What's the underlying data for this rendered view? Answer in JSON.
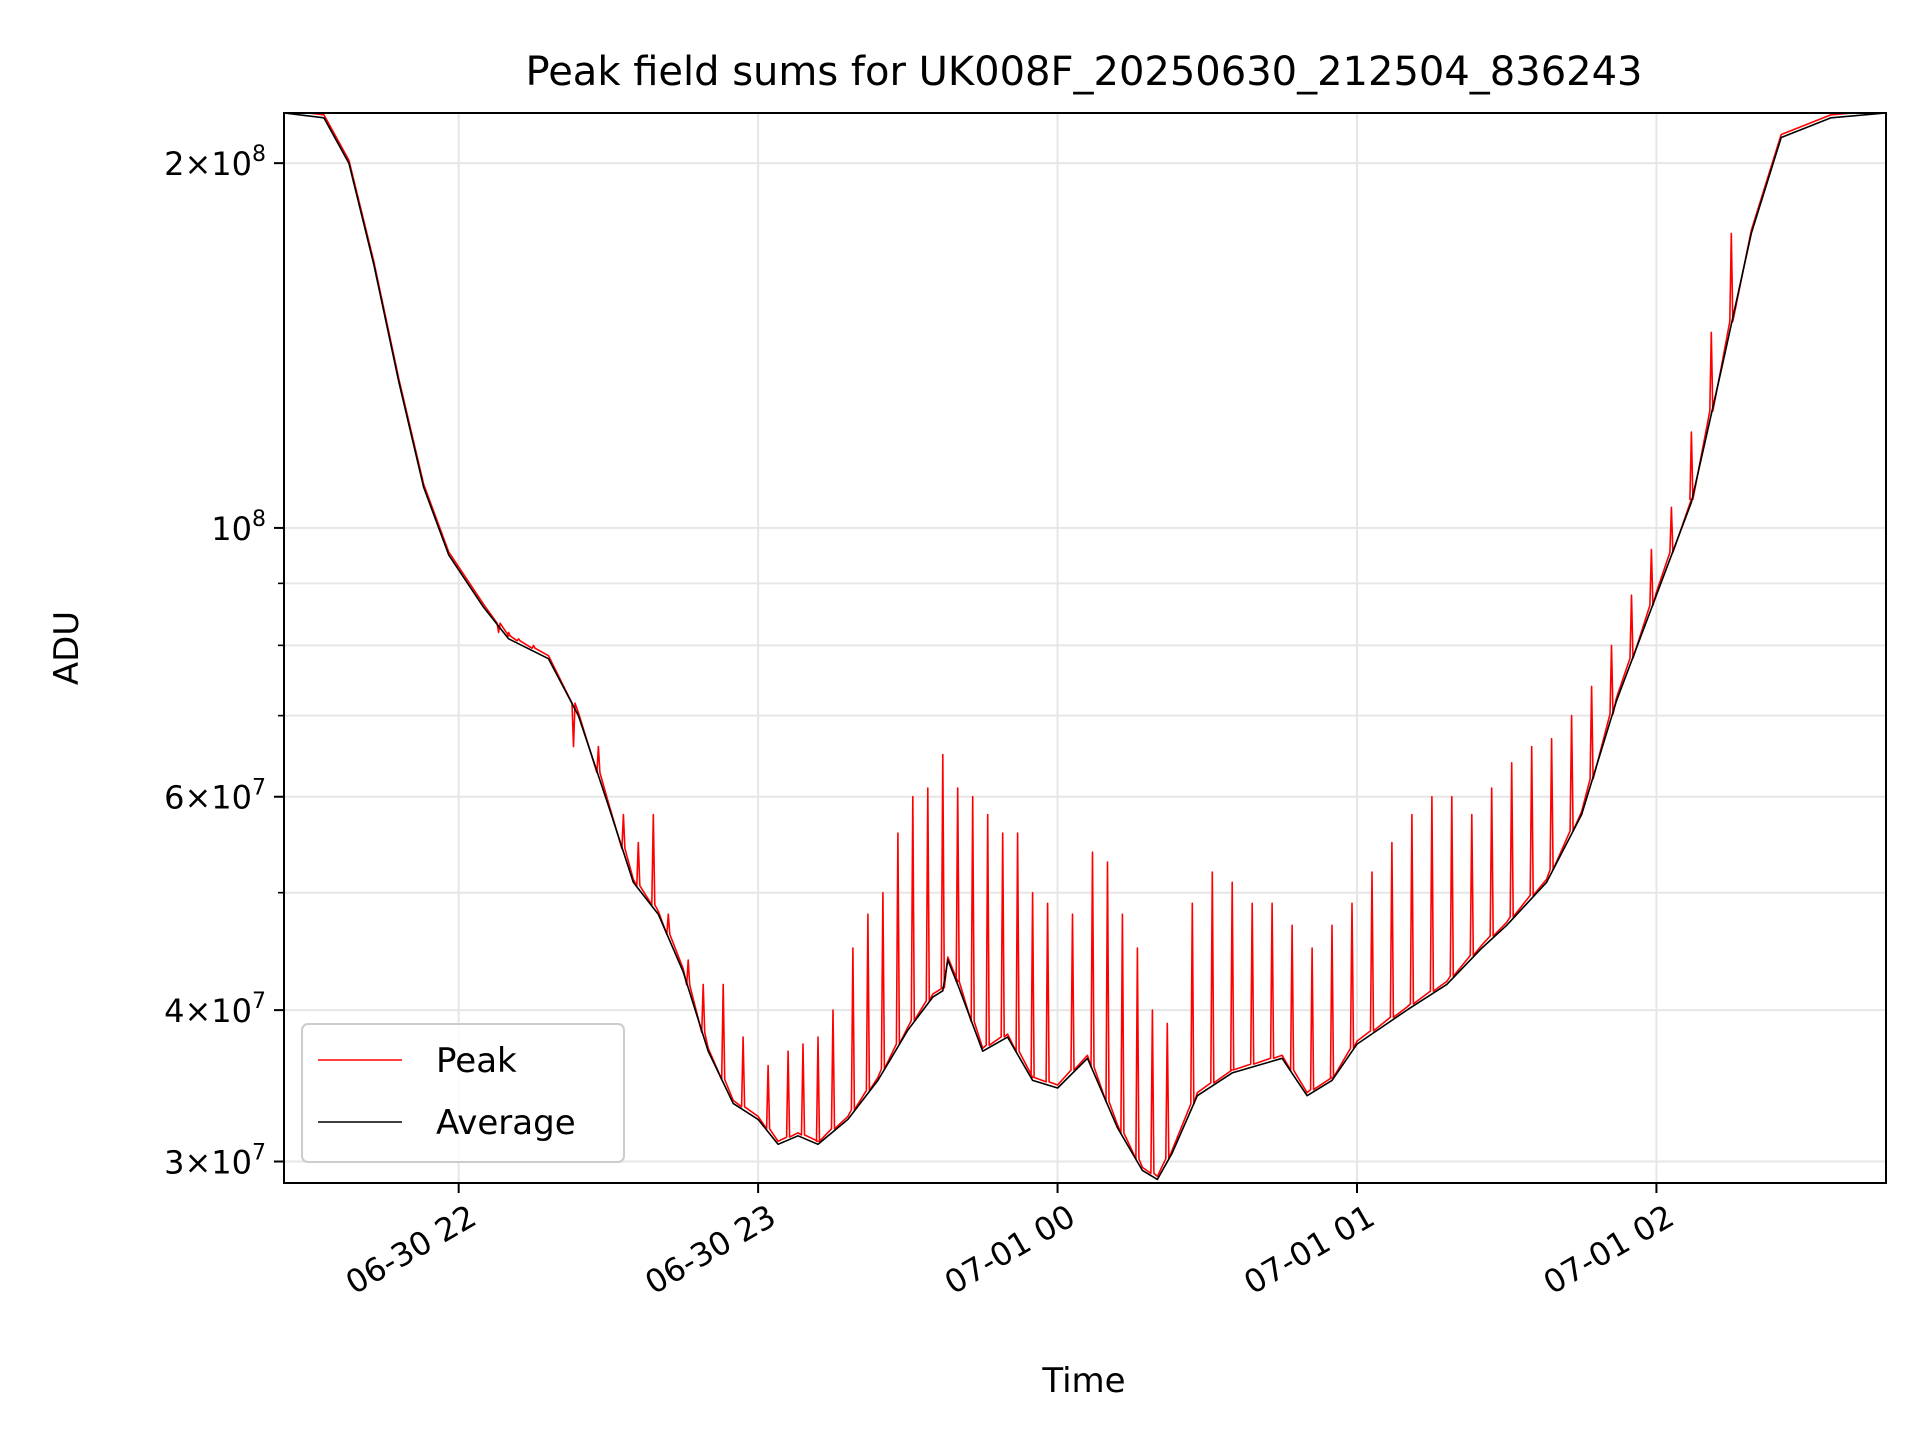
{
  "chart_data": {
    "type": "line",
    "title": "Peak field sums for UK008F_20250630_212504_836243",
    "xlabel": "Time",
    "ylabel": "ADU",
    "yscale": "log",
    "grid": true,
    "legend_position": "lower-left",
    "xlim": [
      "2025-06-30 21:25",
      "2025-07-01 02:46"
    ],
    "ylim": [
      28800000,
      220000000
    ],
    "x_ticks": [
      {
        "value": "2025-06-30 22:00",
        "label": "06-30 22"
      },
      {
        "value": "2025-06-30 23:00",
        "label": "06-30 23"
      },
      {
        "value": "2025-07-01 00:00",
        "label": "07-01 00"
      },
      {
        "value": "2025-07-01 01:00",
        "label": "07-01 01"
      },
      {
        "value": "2025-07-01 02:00",
        "label": "07-01 02"
      }
    ],
    "y_ticks": [
      {
        "value": 30000000,
        "mantissa": "3",
        "exponent": "7"
      },
      {
        "value": 40000000,
        "mantissa": "4",
        "exponent": "7"
      },
      {
        "value": 60000000,
        "mantissa": "6",
        "exponent": "7"
      },
      {
        "value": 100000000,
        "mantissa": "",
        "exponent": "8"
      },
      {
        "value": 200000000,
        "mantissa": "2",
        "exponent": "8"
      }
    ],
    "y_minor_ticks": [
      50000000,
      70000000,
      80000000,
      90000000
    ],
    "series": [
      {
        "name": "Average",
        "color": "#000000",
        "points": [
          [
            "2025-06-30 21:25",
            220000000
          ],
          [
            "2025-06-30 21:33",
            218000000
          ],
          [
            "2025-06-30 21:38",
            200000000
          ],
          [
            "2025-06-30 21:43",
            165000000
          ],
          [
            "2025-06-30 21:48",
            132000000
          ],
          [
            "2025-06-30 21:53",
            108000000
          ],
          [
            "2025-06-30 21:58",
            95000000
          ],
          [
            "2025-06-30 22:05",
            86000000
          ],
          [
            "2025-06-30 22:10",
            81000000
          ],
          [
            "2025-06-30 22:18",
            78000000
          ],
          [
            "2025-06-30 22:24",
            70000000
          ],
          [
            "2025-06-30 22:30",
            59000000
          ],
          [
            "2025-06-30 22:35",
            51000000
          ],
          [
            "2025-06-30 22:40",
            48000000
          ],
          [
            "2025-06-30 22:45",
            43000000
          ],
          [
            "2025-06-30 22:50",
            37000000
          ],
          [
            "2025-06-30 22:55",
            33500000
          ],
          [
            "2025-06-30 23:00",
            32500000
          ],
          [
            "2025-06-30 23:04",
            31000000
          ],
          [
            "2025-06-30 23:08",
            31500000
          ],
          [
            "2025-06-30 23:12",
            31000000
          ],
          [
            "2025-06-30 23:18",
            32500000
          ],
          [
            "2025-06-30 23:24",
            35000000
          ],
          [
            "2025-06-30 23:30",
            38500000
          ],
          [
            "2025-06-30 23:35",
            41000000
          ],
          [
            "2025-06-30 23:37",
            41500000
          ],
          [
            "2025-06-30 23:38",
            44000000
          ],
          [
            "2025-06-30 23:40",
            42000000
          ],
          [
            "2025-06-30 23:45",
            37000000
          ],
          [
            "2025-06-30 23:50",
            38000000
          ],
          [
            "2025-06-30 23:55",
            35000000
          ],
          [
            "2025-07-01 00:00",
            34500000
          ],
          [
            "2025-07-01 00:06",
            36500000
          ],
          [
            "2025-07-01 00:12",
            32000000
          ],
          [
            "2025-07-01 00:17",
            29500000
          ],
          [
            "2025-07-01 00:20",
            29000000
          ],
          [
            "2025-07-01 00:23",
            30500000
          ],
          [
            "2025-07-01 00:28",
            34000000
          ],
          [
            "2025-07-01 00:35",
            35500000
          ],
          [
            "2025-07-01 00:45",
            36500000
          ],
          [
            "2025-07-01 00:50",
            34000000
          ],
          [
            "2025-07-01 00:55",
            35000000
          ],
          [
            "2025-07-01 01:00",
            37500000
          ],
          [
            "2025-07-01 01:10",
            40000000
          ],
          [
            "2025-07-01 01:18",
            42000000
          ],
          [
            "2025-07-01 01:25",
            45000000
          ],
          [
            "2025-07-01 01:30",
            47000000
          ],
          [
            "2025-07-01 01:38",
            51000000
          ],
          [
            "2025-07-01 01:45",
            58000000
          ],
          [
            "2025-07-01 01:52",
            72000000
          ],
          [
            "2025-07-01 02:00",
            88000000
          ],
          [
            "2025-07-01 02:07",
            105000000
          ],
          [
            "2025-07-01 02:13",
            135000000
          ],
          [
            "2025-07-01 02:19",
            175000000
          ],
          [
            "2025-07-01 02:25",
            210000000
          ],
          [
            "2025-07-01 02:35",
            218000000
          ],
          [
            "2025-07-01 02:46",
            220000000
          ]
        ]
      },
      {
        "name": "Peak",
        "color": "#ff0000",
        "spike_points": [
          [
            "2025-06-30 22:08",
            82000000
          ],
          [
            "2025-06-30 22:10",
            82000000
          ],
          [
            "2025-06-30 22:12",
            81000000
          ],
          [
            "2025-06-30 22:15",
            80000000
          ],
          [
            "2025-06-30 22:23",
            66000000
          ],
          [
            "2025-06-30 22:28",
            66000000
          ],
          [
            "2025-06-30 22:33",
            58000000
          ],
          [
            "2025-06-30 22:36",
            55000000
          ],
          [
            "2025-06-30 22:39",
            58000000
          ],
          [
            "2025-06-30 22:42",
            48000000
          ],
          [
            "2025-06-30 22:46",
            44000000
          ],
          [
            "2025-06-30 22:49",
            42000000
          ],
          [
            "2025-06-30 22:53",
            42000000
          ],
          [
            "2025-06-30 22:57",
            38000000
          ],
          [
            "2025-06-30 23:02",
            36000000
          ],
          [
            "2025-06-30 23:06",
            37000000
          ],
          [
            "2025-06-30 23:09",
            37500000
          ],
          [
            "2025-06-30 23:12",
            38000000
          ],
          [
            "2025-06-30 23:15",
            40000000
          ],
          [
            "2025-06-30 23:19",
            45000000
          ],
          [
            "2025-06-30 23:22",
            48000000
          ],
          [
            "2025-06-30 23:25",
            50000000
          ],
          [
            "2025-06-30 23:28",
            56000000
          ],
          [
            "2025-06-30 23:31",
            60000000
          ],
          [
            "2025-06-30 23:34",
            61000000
          ],
          [
            "2025-06-30 23:37",
            65000000
          ],
          [
            "2025-06-30 23:40",
            61000000
          ],
          [
            "2025-06-30 23:43",
            60000000
          ],
          [
            "2025-06-30 23:46",
            58000000
          ],
          [
            "2025-06-30 23:49",
            56000000
          ],
          [
            "2025-06-30 23:52",
            56000000
          ],
          [
            "2025-06-30 23:55",
            50000000
          ],
          [
            "2025-06-30 23:58",
            49000000
          ],
          [
            "2025-07-01 00:03",
            48000000
          ],
          [
            "2025-07-01 00:07",
            54000000
          ],
          [
            "2025-07-01 00:10",
            53000000
          ],
          [
            "2025-07-01 00:13",
            48000000
          ],
          [
            "2025-07-01 00:16",
            45000000
          ],
          [
            "2025-07-01 00:19",
            40000000
          ],
          [
            "2025-07-01 00:22",
            39000000
          ],
          [
            "2025-07-01 00:27",
            49000000
          ],
          [
            "2025-07-01 00:31",
            52000000
          ],
          [
            "2025-07-01 00:35",
            51000000
          ],
          [
            "2025-07-01 00:39",
            49000000
          ],
          [
            "2025-07-01 00:43",
            49000000
          ],
          [
            "2025-07-01 00:47",
            47000000
          ],
          [
            "2025-07-01 00:51",
            45000000
          ],
          [
            "2025-07-01 00:55",
            47000000
          ],
          [
            "2025-07-01 00:59",
            49000000
          ],
          [
            "2025-07-01 01:03",
            52000000
          ],
          [
            "2025-07-01 01:07",
            55000000
          ],
          [
            "2025-07-01 01:11",
            58000000
          ],
          [
            "2025-07-01 01:15",
            60000000
          ],
          [
            "2025-07-01 01:19",
            60000000
          ],
          [
            "2025-07-01 01:23",
            58000000
          ],
          [
            "2025-07-01 01:27",
            61000000
          ],
          [
            "2025-07-01 01:31",
            64000000
          ],
          [
            "2025-07-01 01:35",
            66000000
          ],
          [
            "2025-07-01 01:39",
            67000000
          ],
          [
            "2025-07-01 01:43",
            70000000
          ],
          [
            "2025-07-01 01:47",
            74000000
          ],
          [
            "2025-07-01 01:51",
            80000000
          ],
          [
            "2025-07-01 01:55",
            88000000
          ],
          [
            "2025-07-01 01:59",
            96000000
          ],
          [
            "2025-07-01 02:03",
            104000000
          ],
          [
            "2025-07-01 02:07",
            120000000
          ],
          [
            "2025-07-01 02:11",
            145000000
          ],
          [
            "2025-07-01 02:15",
            175000000
          ]
        ]
      }
    ]
  }
}
